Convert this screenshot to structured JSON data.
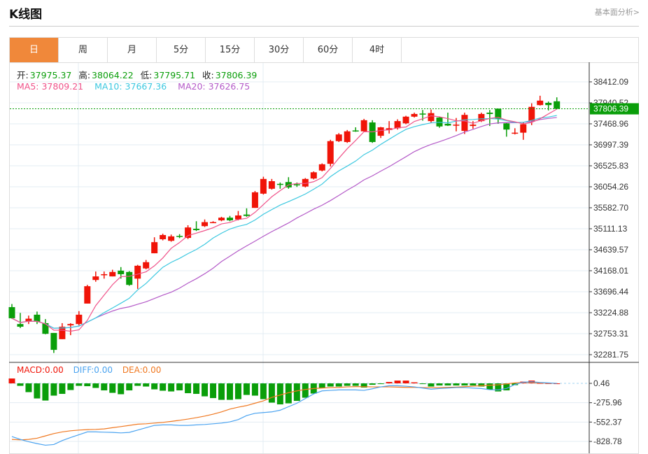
{
  "header": {
    "title": "K线图",
    "link": "基本面分析>"
  },
  "tabs": [
    "日",
    "周",
    "月",
    "5分",
    "15分",
    "30分",
    "60分",
    "4时"
  ],
  "active_tab": 0,
  "ohlc_labels": {
    "open_label": "开:",
    "open": "37975.37",
    "high_label": "高:",
    "high": "38064.22",
    "low_label": "低:",
    "low": "37795.71",
    "close_label": "收:",
    "close": "37806.39"
  },
  "ma_labels": {
    "ma5": "MA5: 37809.21",
    "ma10": "MA10: 37667.36",
    "ma20": "MA20: 37626.75"
  },
  "macd_labels": {
    "macd": "MACD:0.00",
    "diff": "DIFF:0.00",
    "dea": "DEA:0.00"
  },
  "colors": {
    "up": "#f01408",
    "down": "#0a9e0a",
    "ma5": "#f0538a",
    "ma10": "#3cc8e0",
    "ma20": "#b45ac8",
    "diff": "#4aa3f0",
    "dea": "#f07820",
    "accent": "#f0883a"
  },
  "chart_data": {
    "type": "candlestick",
    "price_ticks": [
      "38412.09",
      "37940.52",
      "37468.96",
      "36997.39",
      "36525.83",
      "36054.26",
      "35582.70",
      "35111.13",
      "34639.57",
      "34168.01",
      "33696.44",
      "33224.88",
      "32753.31",
      "32281.75"
    ],
    "price_range": [
      32281.75,
      38412.09
    ],
    "last_price": "37806.39",
    "macd_ticks": [
      "0.46",
      "-275.96",
      "-552.37",
      "-828.78"
    ],
    "macd_range": [
      -828.78,
      0.46
    ],
    "candles": [
      [
        33350,
        33420,
        33090,
        33100
      ],
      [
        32970,
        33220,
        32880,
        32910
      ],
      [
        33030,
        33160,
        32970,
        33090
      ],
      [
        33180,
        33250,
        32970,
        33020
      ],
      [
        32990,
        33080,
        32740,
        32750
      ],
      [
        32770,
        32770,
        32320,
        32390
      ],
      [
        32630,
        32990,
        32630,
        32910
      ],
      [
        32940,
        32990,
        32720,
        32970
      ],
      [
        32970,
        33260,
        32940,
        33180
      ],
      [
        33430,
        33850,
        33430,
        33820
      ],
      [
        33960,
        34150,
        33920,
        34040
      ],
      [
        34080,
        34150,
        33990,
        34090
      ],
      [
        34040,
        34190,
        34040,
        34140
      ],
      [
        34170,
        34250,
        33990,
        34090
      ],
      [
        34140,
        34160,
        33830,
        33850
      ],
      [
        33990,
        34300,
        33760,
        34280
      ],
      [
        34220,
        34410,
        34200,
        34360
      ],
      [
        34560,
        34920,
        34560,
        34810
      ],
      [
        34875,
        35000,
        34850,
        34970
      ],
      [
        34840,
        34980,
        34820,
        34940
      ],
      [
        34950,
        34990,
        34900,
        34930
      ],
      [
        34905,
        35190,
        34880,
        35140
      ],
      [
        35110,
        35280,
        35060,
        35080
      ],
      [
        35170,
        35320,
        35150,
        35260
      ],
      [
        35250,
        35280,
        35240,
        35260
      ],
      [
        35300,
        35380,
        35280,
        35360
      ],
      [
        35360,
        35400,
        35280,
        35300
      ],
      [
        35320,
        35510,
        35300,
        35410
      ],
      [
        35430,
        35570,
        35380,
        35400
      ],
      [
        35580,
        35960,
        35580,
        35930
      ],
      [
        35900,
        36280,
        35880,
        36230
      ],
      [
        36010,
        36230,
        35990,
        36180
      ],
      [
        36120,
        36150,
        36010,
        36100
      ],
      [
        36160,
        36270,
        36010,
        36040
      ],
      [
        36110,
        36150,
        36050,
        36090
      ],
      [
        36060,
        36250,
        36040,
        36230
      ],
      [
        36240,
        36400,
        36220,
        36380
      ],
      [
        36420,
        36580,
        36400,
        36560
      ],
      [
        36570,
        37110,
        36510,
        37080
      ],
      [
        37080,
        37260,
        37060,
        37230
      ],
      [
        37060,
        37330,
        37040,
        37300
      ],
      [
        37320,
        37390,
        37290,
        37300
      ],
      [
        37300,
        37580,
        37280,
        37550
      ],
      [
        37500,
        37550,
        37040,
        37060
      ],
      [
        37200,
        37400,
        37150,
        37390
      ],
      [
        37330,
        37530,
        37250,
        37370
      ],
      [
        37370,
        37570,
        37340,
        37530
      ],
      [
        37480,
        37650,
        37460,
        37630
      ],
      [
        37630,
        37720,
        37610,
        37690
      ],
      [
        37700,
        37780,
        37540,
        37690
      ],
      [
        37530,
        37790,
        37490,
        37710
      ],
      [
        37610,
        37630,
        37380,
        37410
      ],
      [
        37470,
        37720,
        37420,
        37430
      ],
      [
        37440,
        37600,
        37300,
        37450
      ],
      [
        37310,
        37720,
        37240,
        37670
      ],
      [
        37420,
        37530,
        37360,
        37450
      ],
      [
        37530,
        37720,
        37510,
        37690
      ],
      [
        37720,
        37780,
        37420,
        37690
      ],
      [
        37810,
        37810,
        37470,
        37580
      ],
      [
        37480,
        37500,
        37180,
        37340
      ],
      [
        37270,
        37370,
        37230,
        37270
      ],
      [
        37270,
        37510,
        37110,
        37460
      ],
      [
        37530,
        37930,
        37440,
        37850
      ],
      [
        37890,
        38100,
        37880,
        37990
      ],
      [
        37940,
        37970,
        37770,
        37890
      ],
      [
        37975.37,
        38064.22,
        37795.71,
        37806.39
      ]
    ],
    "macd": [
      70,
      -35,
      -125,
      -215,
      -245,
      -175,
      -150,
      -95,
      -35,
      -40,
      -65,
      -100,
      -135,
      -155,
      -100,
      -35,
      -45,
      -85,
      -105,
      -115,
      -100,
      -140,
      -150,
      -185,
      -210,
      -235,
      -235,
      -225,
      -165,
      -175,
      -225,
      -275,
      -300,
      -285,
      -250,
      -205,
      -145,
      -65,
      -45,
      -45,
      -35,
      -35,
      -60,
      -20,
      -5,
      20,
      40,
      40,
      15,
      -5,
      -45,
      -30,
      -30,
      -30,
      -30,
      -30,
      -45,
      -90,
      -115,
      -100,
      -25,
      25,
      40,
      5,
      2,
      0
    ],
    "diff": [
      -760,
      -800,
      -833,
      -860,
      -883,
      -873,
      -817,
      -773,
      -733,
      -693,
      -693,
      -697,
      -700,
      -707,
      -700,
      -667,
      -633,
      -600,
      -593,
      -593,
      -600,
      -600,
      -593,
      -587,
      -577,
      -567,
      -550,
      -517,
      -460,
      -427,
      -417,
      -407,
      -383,
      -333,
      -283,
      -217,
      -150,
      -107,
      -100,
      -93,
      -93,
      -93,
      -100,
      -77,
      -50,
      -33,
      -33,
      -40,
      -50,
      -67,
      -83,
      -73,
      -67,
      -60,
      -60,
      -67,
      -73,
      -90,
      -93,
      -73,
      -17,
      17,
      23,
      13,
      7,
      0
    ],
    "dea": [
      -800,
      -807,
      -800,
      -783,
      -750,
      -717,
      -693,
      -677,
      -667,
      -660,
      -657,
      -650,
      -633,
      -617,
      -600,
      -583,
      -577,
      -567,
      -557,
      -543,
      -527,
      -510,
      -490,
      -467,
      -440,
      -407,
      -367,
      -340,
      -317,
      -283,
      -250,
      -200,
      -167,
      -133,
      -107,
      -87,
      -73,
      -67,
      -60,
      -57,
      -50,
      -47,
      -47,
      -50,
      -50,
      -50,
      -53,
      -57,
      -57,
      -60,
      -60,
      -60,
      -57,
      -53,
      -47,
      -40,
      -33,
      -27,
      -20,
      -7,
      7,
      13,
      13,
      7,
      3,
      0
    ]
  }
}
